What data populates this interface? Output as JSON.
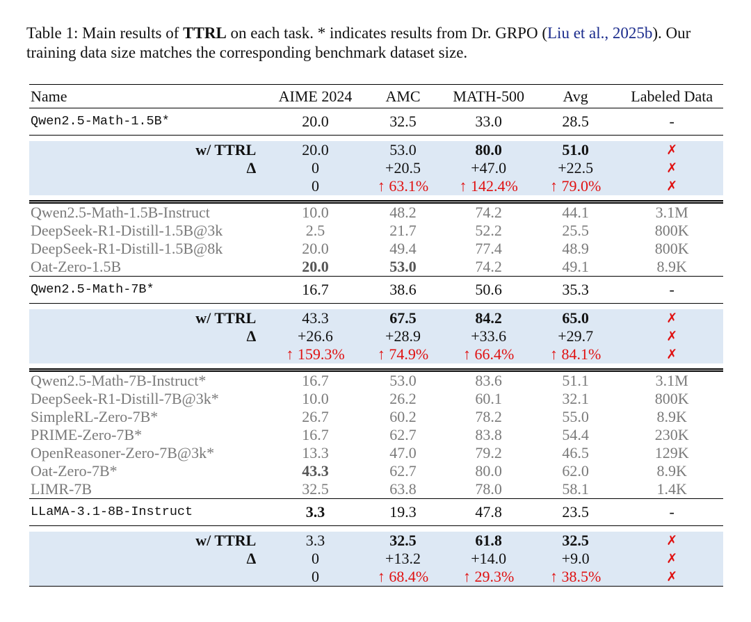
{
  "caption": [
    "Table 1: Main results of ",
    "TTRL",
    " on each task. * indicates results from Dr. GRPO (",
    "Liu et al., 2025b",
    "). Our training data size matches the corresponding benchmark dataset size."
  ],
  "table": {
    "header": [
      "Name",
      "AIME 2024",
      "AMC",
      "MATH-500",
      "Avg",
      "Labeled Data"
    ],
    "rows": [
      [
        "Qwen2.5-Math-1.5B*",
        "20.0",
        "32.5",
        "33.0",
        "28.5",
        "-"
      ],
      [
        "w/ TTRL",
        "20.0",
        "53.0",
        "80.0",
        "51.0",
        "✗"
      ],
      [
        "Δ",
        "0",
        "+20.5",
        "+47.0",
        "+22.5",
        "✗"
      ],
      [
        null,
        "0",
        "↑ 63.1%",
        "↑ 142.4%",
        "↑ 79.0%",
        "✗"
      ],
      [
        "Qwen2.5-Math-1.5B-Instruct",
        "10.0",
        "48.2",
        "74.2",
        "44.1",
        "3.1M"
      ],
      [
        "DeepSeek-R1-Distill-1.5B@3k",
        "2.5",
        "21.7",
        "52.2",
        "25.5",
        "800K"
      ],
      [
        "DeepSeek-R1-Distill-1.5B@8k",
        "20.0",
        "49.4",
        "77.4",
        "48.9",
        "800K"
      ],
      [
        "Oat-Zero-1.5B",
        "20.0",
        "53.0",
        "74.2",
        "49.1",
        "8.9K"
      ],
      [
        "Qwen2.5-Math-7B*",
        "16.7",
        "38.6",
        "50.6",
        "35.3",
        "-"
      ],
      [
        "w/ TTRL",
        "43.3",
        "67.5",
        "84.2",
        "65.0",
        "✗"
      ],
      [
        "Δ",
        "+26.6",
        "+28.9",
        "+33.6",
        "+29.7",
        "✗"
      ],
      [
        null,
        "↑ 159.3%",
        "↑ 74.9%",
        "↑ 66.4%",
        "↑ 84.1%",
        "✗"
      ],
      [
        "Qwen2.5-Math-7B-Instruct*",
        "16.7",
        "53.0",
        "83.6",
        "51.1",
        "3.1M"
      ],
      [
        "DeepSeek-R1-Distill-7B@3k*",
        "10.0",
        "26.2",
        "60.1",
        "32.1",
        "800K"
      ],
      [
        "SimpleRL-Zero-7B*",
        "26.7",
        "60.2",
        "78.2",
        "55.0",
        "8.9K"
      ],
      [
        "PRIME-Zero-7B*",
        "16.7",
        "62.7",
        "83.8",
        "54.4",
        "230K"
      ],
      [
        "OpenReasoner-Zero-7B@3k*",
        "13.3",
        "47.0",
        "79.2",
        "46.5",
        "129K"
      ],
      [
        "Oat-Zero-7B*",
        "43.3",
        "62.7",
        "80.0",
        "62.0",
        "8.9K"
      ],
      [
        "LIMR-7B",
        "32.5",
        "63.8",
        "78.0",
        "58.1",
        "1.4K"
      ],
      [
        "LLaMA-3.1-8B-Instruct",
        "3.3",
        "19.3",
        "47.8",
        "23.5",
        "-"
      ],
      [
        "w/ TTRL",
        "3.3",
        "32.5",
        "61.8",
        "32.5",
        "✗"
      ],
      [
        "Δ",
        "0",
        "+13.2",
        "+14.0",
        "+9.0",
        "✗"
      ],
      [
        null,
        "0",
        "↑ 68.4%",
        "↑ 29.3%",
        "↑ 38.5%",
        "✗"
      ]
    ]
  }
}
